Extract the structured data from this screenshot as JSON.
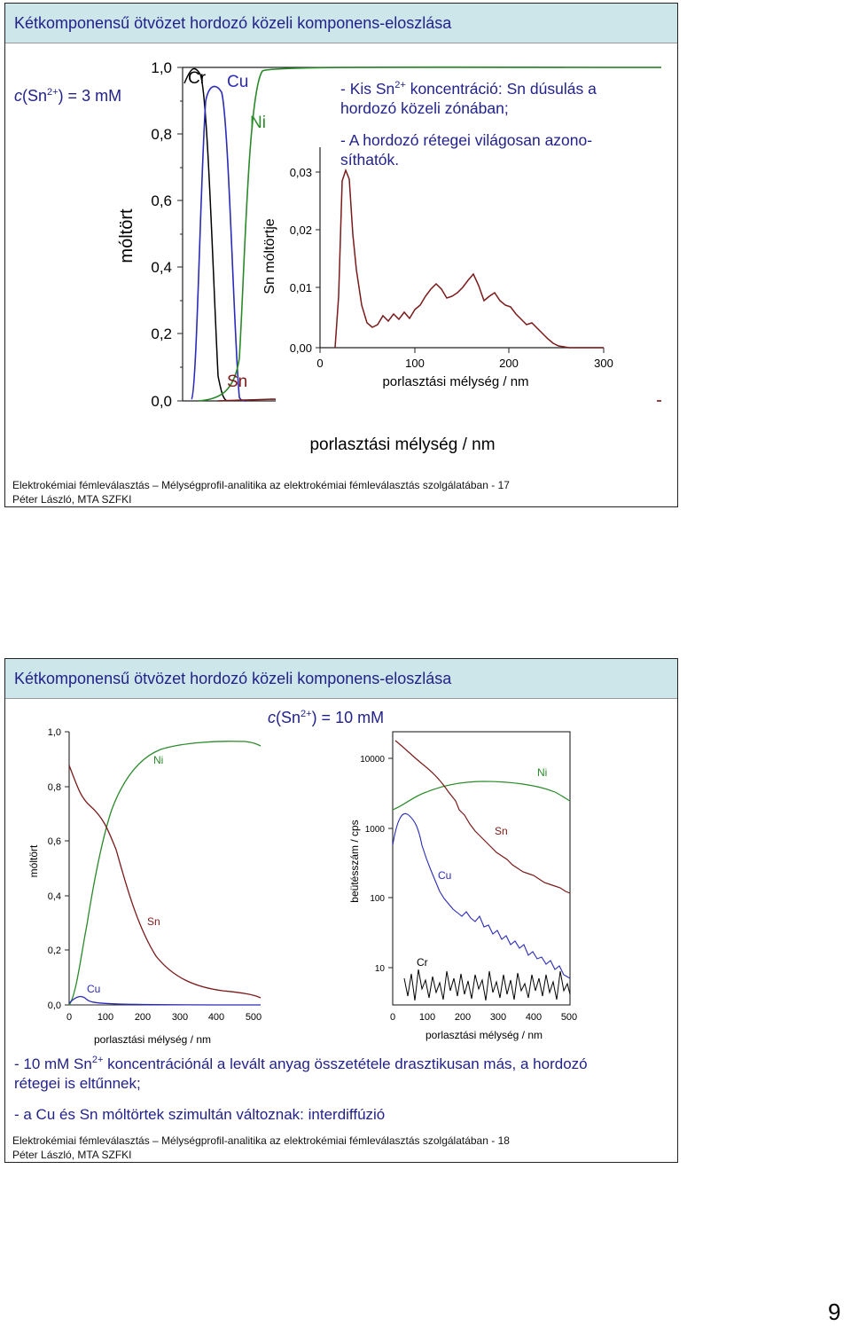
{
  "slide1": {
    "title": "Kétkomponensű ötvözet hordozó közeli komponens-eloszlása",
    "concentration": {
      "symbol": "c",
      "rest": "(Sn",
      "sup": "2+",
      "tail": ") = 3 mM"
    },
    "y_axis_label": "móltört",
    "y_ticks": [
      "1,0",
      "0,8",
      "0,6",
      "0,4",
      "0,2",
      "0,0"
    ],
    "x_axis_label": "porlasztási mélység / nm",
    "curve_labels": [
      "Cr",
      "Cu",
      "Ni",
      "Sn"
    ],
    "inset": {
      "y_axis_label": "Sn móltörtje",
      "y_ticks": [
        "0,03",
        "0,02",
        "0,01",
        "0,00"
      ],
      "x_ticks": [
        "0",
        "100",
        "200",
        "300"
      ],
      "x_axis_label": "porlasztási mélység / nm"
    },
    "notes": [
      {
        "a": "- Kis Sn",
        "sup": "2+",
        "b": " koncentráció: Sn dúsulás a",
        "c": "hordozó közeli zónában;"
      },
      {
        "a": "- A hordozó rétegei világosan azono-",
        "c": "síthatók."
      }
    ],
    "footer_line1": "Elektrokémiai fémleválasztás – Mélységprofil-analitika az elektrokémiai fémleválasztás szolgálatában - 17",
    "footer_line2": "Péter László, MTA SZFKI"
  },
  "slide2": {
    "title": "Kétkomponensű ötvözet hordozó közeli komponens-eloszlása",
    "concentration": {
      "symbol": "c",
      "rest": "(Sn",
      "sup": "2+",
      "tail": ") = 10 mM"
    },
    "left_chart": {
      "y_axis_label": "móltört",
      "y_ticks": [
        "1,0",
        "0,8",
        "0,6",
        "0,4",
        "0,2",
        "0,0"
      ],
      "x_ticks": [
        "0",
        "100",
        "200",
        "300",
        "400",
        "500"
      ],
      "x_axis_label": "porlasztási mélység / nm",
      "curve_labels": [
        "Ni",
        "Sn",
        "Cu"
      ]
    },
    "right_chart": {
      "y_axis_label": "beütésszám / cps",
      "y_ticks": [
        "10000",
        "1000",
        "100",
        "10"
      ],
      "x_ticks": [
        "0",
        "100",
        "200",
        "300",
        "400",
        "500"
      ],
      "x_axis_label": "porlasztási mélység / nm",
      "curve_labels": [
        "Ni",
        "Sn",
        "Cu",
        "Cr"
      ]
    },
    "notes": [
      {
        "a": "- 10 mM Sn",
        "sup": "2+",
        "b": " koncentrációnál a levált anyag összetétele drasztikusan más, a hordozó",
        "c": "rétegei is eltűnnek;"
      },
      {
        "a": "- a Cu és Sn móltörtek szimultán változnak: interdiffúzió"
      }
    ],
    "footer_line1": "Elektrokémiai fémleválasztás – Mélységprofil-analitika az elektrokémiai fémleválasztás szolgálatában - 18",
    "footer_line2": "Péter László, MTA SZFKI"
  },
  "page_number": "9",
  "colors": {
    "title_bg": "#cce6ea",
    "title_text": "#22228a",
    "cr": "#000000",
    "cu": "#2b2bb8",
    "ni": "#2a8a2a",
    "sn": "#7a1a1a"
  }
}
